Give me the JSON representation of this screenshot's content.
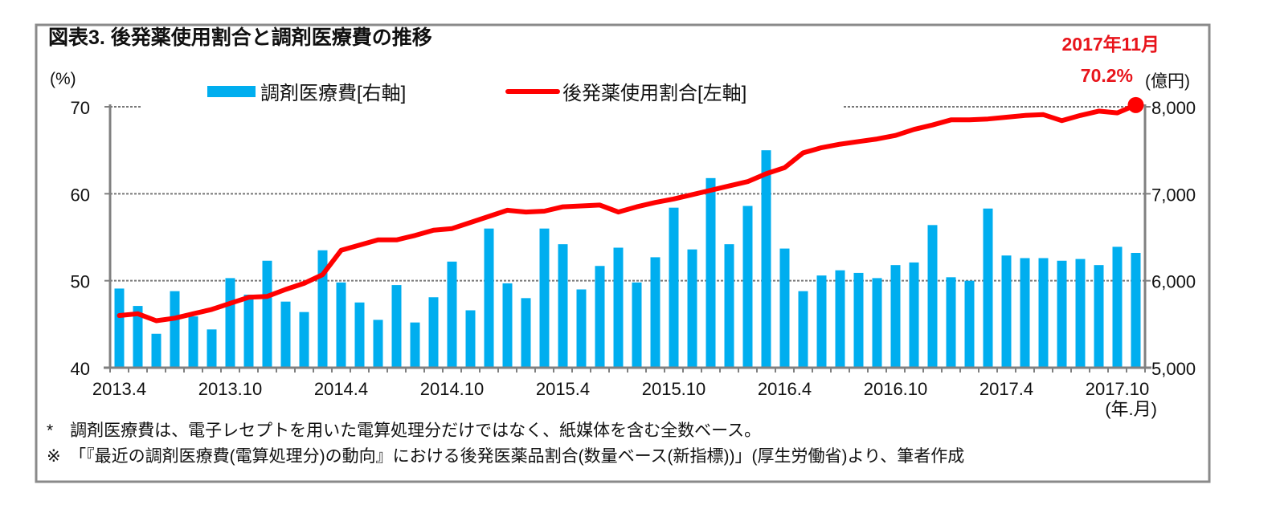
{
  "chart_data": {
    "type": "bar+line",
    "title": "図表3.  後発薬使用割合と調剤医療費の推移",
    "x": [
      "2013.4",
      "2013.5",
      "2013.6",
      "2013.7",
      "2013.8",
      "2013.9",
      "2013.10",
      "2013.11",
      "2013.12",
      "2014.1",
      "2014.2",
      "2014.3",
      "2014.4",
      "2014.5",
      "2014.6",
      "2014.7",
      "2014.8",
      "2014.9",
      "2014.10",
      "2014.11",
      "2014.12",
      "2015.1",
      "2015.2",
      "2015.3",
      "2015.4",
      "2015.5",
      "2015.6",
      "2015.7",
      "2015.8",
      "2015.9",
      "2015.10",
      "2015.11",
      "2015.12",
      "2016.1",
      "2016.2",
      "2016.3",
      "2016.4",
      "2016.5",
      "2016.6",
      "2016.7",
      "2016.8",
      "2016.9",
      "2016.10",
      "2016.11",
      "2016.12",
      "2017.1",
      "2017.2",
      "2017.3",
      "2017.4",
      "2017.5",
      "2017.6",
      "2017.7",
      "2017.8",
      "2017.9",
      "2017.10",
      "2017.11"
    ],
    "xtick_labels": [
      "2013.4",
      "2013.10",
      "2014.4",
      "2014.10",
      "2015.4",
      "2015.10",
      "2016.4",
      "2016.10",
      "2017.4",
      "2017.10"
    ],
    "xlabel": "(年.月)",
    "series": [
      {
        "name": "調剤医療費[右軸]",
        "type": "bar",
        "axis": "right",
        "color": "#00aeef",
        "values": [
          5910,
          5710,
          5390,
          5880,
          5590,
          5440,
          6030,
          5840,
          6230,
          5760,
          5640,
          6350,
          5980,
          5750,
          5550,
          5950,
          5520,
          5810,
          6220,
          5660,
          6600,
          5970,
          5800,
          6600,
          6420,
          5900,
          6170,
          6380,
          5980,
          6270,
          6840,
          6360,
          7180,
          6420,
          6860,
          7500,
          6370,
          5880,
          6060,
          6120,
          6090,
          6030,
          6180,
          6210,
          6640,
          6040,
          6000,
          6830,
          6290,
          6260,
          6260,
          6230,
          6250,
          6180,
          6390,
          6320
        ]
      },
      {
        "name": "後発薬使用割合[左軸]",
        "type": "line",
        "axis": "left",
        "color": "#ff0000",
        "values": [
          46.0,
          46.2,
          45.4,
          45.7,
          46.2,
          46.7,
          47.4,
          48.1,
          48.2,
          49.0,
          49.7,
          50.7,
          53.5,
          54.1,
          54.7,
          54.7,
          55.2,
          55.8,
          56.0,
          56.7,
          57.4,
          58.1,
          57.9,
          58.0,
          58.5,
          58.6,
          58.7,
          57.9,
          58.5,
          59.0,
          59.4,
          59.9,
          60.4,
          60.9,
          61.4,
          62.3,
          63.0,
          64.7,
          65.3,
          65.7,
          66.0,
          66.3,
          66.7,
          67.4,
          67.9,
          68.5,
          68.5,
          68.6,
          68.8,
          69.0,
          69.1,
          68.4,
          69.0,
          69.5,
          69.3,
          70.2
        ]
      }
    ],
    "left_axis": {
      "unit": "(%)",
      "ylim": [
        40,
        70
      ],
      "ticks": [
        "40",
        "50",
        "60",
        "70"
      ]
    },
    "right_axis": {
      "unit": "(億円)",
      "ylim": [
        5000,
        8000
      ],
      "ticks": [
        "5,000",
        "6,000",
        "7,000",
        "8,000"
      ]
    },
    "grid": true,
    "legend": "top",
    "annotation": {
      "line1": "2017年11月",
      "line2": "70.2%"
    },
    "notes": [
      "*　調剤医療費は、電子レセプトを用いた電算処理分だけではなく、紙媒体を含む全数ベース。",
      "※　「『最近の調剤医療費(電算処理分)の動向』における後発医薬品割合(数量ベース(新指標))」(厚生労働省)より、筆者作成"
    ]
  }
}
